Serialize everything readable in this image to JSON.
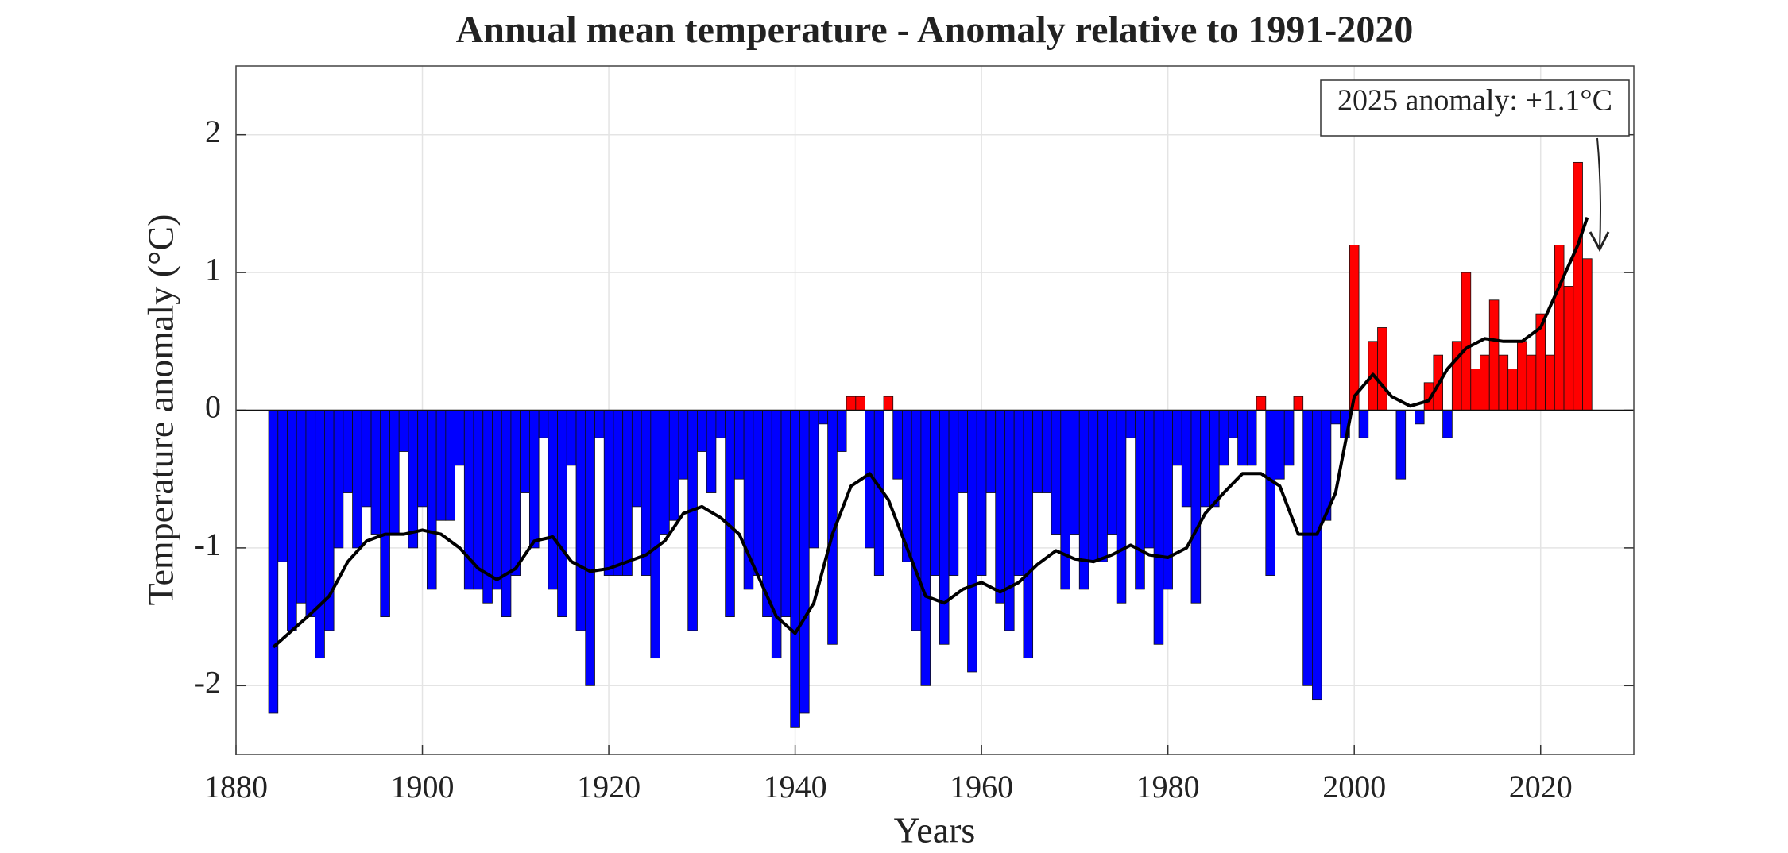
{
  "chart_data": {
    "type": "bar",
    "title": "Annual mean temperature - Anomaly relative to 1991-2020",
    "x_label": "Years",
    "y_label": "Temperature anomaly (°C)",
    "annotation": "2025 anomaly: +1.1°C",
    "positive_color": "#ff0000",
    "negative_color": "#0000ff",
    "grid": true,
    "xlim": [
      1880,
      2030
    ],
    "xticks": [
      1880,
      1900,
      1920,
      1940,
      1960,
      1980,
      2000,
      2020
    ],
    "ylim": [
      -2.5,
      2.5
    ],
    "yticks": [
      -2,
      -1,
      0,
      1,
      2
    ],
    "x": [
      1884,
      1885,
      1886,
      1887,
      1888,
      1889,
      1890,
      1891,
      1892,
      1893,
      1894,
      1895,
      1896,
      1897,
      1898,
      1899,
      1900,
      1901,
      1902,
      1903,
      1904,
      1905,
      1906,
      1907,
      1908,
      1909,
      1910,
      1911,
      1912,
      1913,
      1914,
      1915,
      1916,
      1917,
      1918,
      1919,
      1920,
      1921,
      1922,
      1923,
      1924,
      1925,
      1926,
      1927,
      1928,
      1929,
      1930,
      1931,
      1932,
      1933,
      1934,
      1935,
      1936,
      1937,
      1938,
      1939,
      1940,
      1941,
      1942,
      1943,
      1944,
      1945,
      1946,
      1947,
      1948,
      1949,
      1950,
      1951,
      1952,
      1953,
      1954,
      1955,
      1956,
      1957,
      1958,
      1959,
      1960,
      1961,
      1962,
      1963,
      1964,
      1965,
      1966,
      1967,
      1968,
      1969,
      1970,
      1971,
      1972,
      1973,
      1974,
      1975,
      1976,
      1977,
      1978,
      1979,
      1980,
      1981,
      1982,
      1983,
      1984,
      1985,
      1986,
      1987,
      1988,
      1989,
      1990,
      1991,
      1992,
      1993,
      1994,
      1995,
      1996,
      1997,
      1998,
      1999,
      2000,
      2001,
      2002,
      2003,
      2004,
      2005,
      2006,
      2007,
      2008,
      2009,
      2010,
      2011,
      2012,
      2013,
      2014,
      2015,
      2016,
      2017,
      2018,
      2019,
      2020,
      2021,
      2022,
      2023,
      2024,
      2025
    ],
    "values": [
      -2.2,
      -1.1,
      -1.6,
      -1.4,
      -1.5,
      -1.8,
      -1.6,
      -1.0,
      -0.6,
      -1.0,
      -0.7,
      -0.9,
      -1.5,
      -0.9,
      -0.3,
      -1.0,
      -0.7,
      -1.3,
      -0.8,
      -0.8,
      -0.4,
      -1.3,
      -1.3,
      -1.4,
      -1.3,
      -1.5,
      -1.2,
      -0.6,
      -1.0,
      -0.2,
      -1.3,
      -1.5,
      -0.4,
      -1.6,
      -2.0,
      -0.2,
      -1.2,
      -1.2,
      -1.2,
      -0.7,
      -1.2,
      -1.8,
      -0.9,
      -0.8,
      -0.5,
      -1.6,
      -0.3,
      -0.6,
      -0.2,
      -1.5,
      -0.5,
      -1.3,
      -1.2,
      -1.5,
      -1.8,
      -1.5,
      -2.3,
      -2.2,
      -1.0,
      -0.1,
      -1.7,
      -0.3,
      0.1,
      0.1,
      -1.0,
      -1.2,
      0.1,
      -0.5,
      -1.1,
      -1.6,
      -2.0,
      -1.2,
      -1.7,
      -1.2,
      -0.6,
      -1.9,
      -1.2,
      -0.6,
      -1.4,
      -1.6,
      -1.2,
      -1.8,
      -0.6,
      -0.6,
      -0.9,
      -1.3,
      -0.9,
      -1.3,
      -1.1,
      -1.1,
      -0.9,
      -1.4,
      -0.2,
      -1.3,
      -1.0,
      -1.7,
      -1.3,
      -0.4,
      -0.7,
      -1.4,
      -0.7,
      -0.7,
      -0.4,
      -0.2,
      -0.4,
      -0.4,
      0.1,
      -1.2,
      -0.5,
      -0.4,
      0.1,
      -2.0,
      -2.1,
      -0.8,
      -0.1,
      -0.2,
      1.2,
      -0.2,
      0.5,
      0.6,
      0.0,
      -0.5,
      0.0,
      -0.1,
      0.2,
      0.4,
      -0.2,
      0.5,
      1.0,
      0.3,
      0.4,
      0.8,
      0.4,
      0.3,
      0.5,
      0.4,
      0.7,
      0.4,
      1.2,
      0.9,
      1.8,
      1.1
    ],
    "trend": {
      "color": "#000000",
      "x": [
        1884,
        1886,
        1888,
        1890,
        1892,
        1894,
        1896,
        1898,
        1900,
        1902,
        1904,
        1906,
        1908,
        1910,
        1912,
        1914,
        1916,
        1918,
        1920,
        1922,
        1924,
        1926,
        1928,
        1930,
        1932,
        1934,
        1936,
        1938,
        1940,
        1942,
        1944,
        1946,
        1948,
        1950,
        1952,
        1954,
        1956,
        1958,
        1960,
        1962,
        1964,
        1966,
        1968,
        1970,
        1972,
        1974,
        1976,
        1978,
        1980,
        1982,
        1984,
        1986,
        1988,
        1990,
        1992,
        1994,
        1996,
        1998,
        2000,
        2002,
        2004,
        2006,
        2008,
        2010,
        2012,
        2014,
        2016,
        2018,
        2020,
        2022,
        2024,
        2025
      ],
      "values": [
        -1.72,
        -1.6,
        -1.48,
        -1.35,
        -1.1,
        -0.95,
        -0.9,
        -0.9,
        -0.87,
        -0.9,
        -1.0,
        -1.15,
        -1.23,
        -1.15,
        -0.95,
        -0.92,
        -1.1,
        -1.17,
        -1.15,
        -1.1,
        -1.05,
        -0.95,
        -0.75,
        -0.7,
        -0.78,
        -0.9,
        -1.2,
        -1.5,
        -1.62,
        -1.4,
        -0.9,
        -0.55,
        -0.46,
        -0.65,
        -1.0,
        -1.35,
        -1.4,
        -1.3,
        -1.25,
        -1.32,
        -1.25,
        -1.12,
        -1.02,
        -1.08,
        -1.1,
        -1.05,
        -0.98,
        -1.05,
        -1.07,
        -1.0,
        -0.75,
        -0.6,
        -0.46,
        -0.46,
        -0.55,
        -0.9,
        -0.9,
        -0.6,
        0.1,
        0.26,
        0.1,
        0.03,
        0.07,
        0.3,
        0.45,
        0.52,
        0.5,
        0.5,
        0.6,
        0.9,
        1.2,
        1.4
      ]
    }
  }
}
